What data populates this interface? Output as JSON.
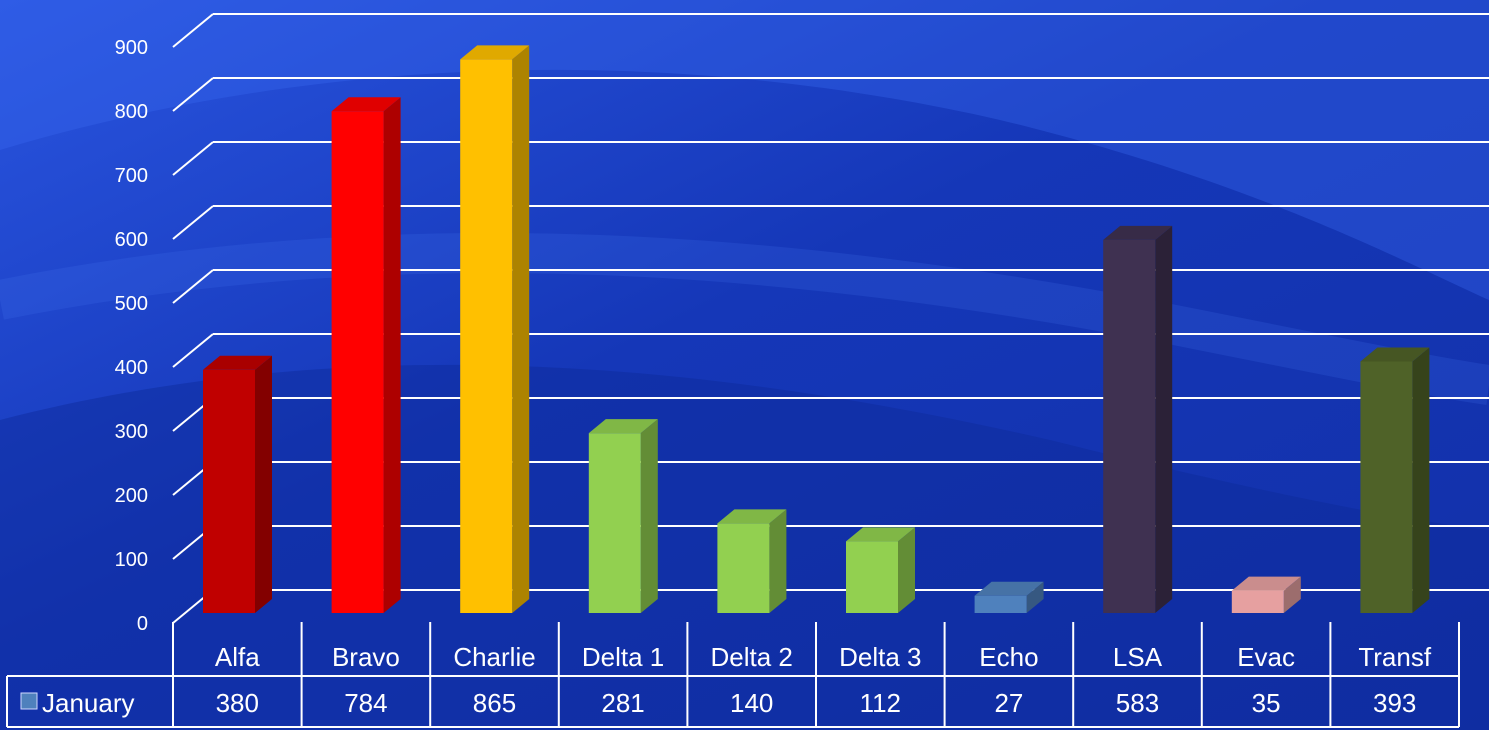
{
  "chart_data": {
    "type": "bar",
    "style": "3d-column-with-data-table",
    "categories": [
      "Alfa",
      "Bravo",
      "Charlie",
      "Delta 1",
      "Delta 2",
      "Delta 3",
      "Echo",
      "LSA",
      "Evac",
      "Transf"
    ],
    "series": [
      {
        "name": "January",
        "values": [
          380,
          784,
          865,
          281,
          140,
          112,
          27,
          583,
          35,
          393
        ],
        "legend_color": "#4f81bd"
      }
    ],
    "bar_colors": [
      "#c00000",
      "#ff0000",
      "#ffc000",
      "#92d050",
      "#92d050",
      "#92d050",
      "#4f81bd",
      "#3f3151",
      "#e6a0a0",
      "#4f6228"
    ],
    "y_ticks": [
      "0",
      "100",
      "200",
      "300",
      "400",
      "500",
      "600",
      "700",
      "800",
      "900"
    ],
    "ylim": [
      0,
      900
    ],
    "grid": true,
    "data_table": true,
    "background": "#1838c0"
  }
}
